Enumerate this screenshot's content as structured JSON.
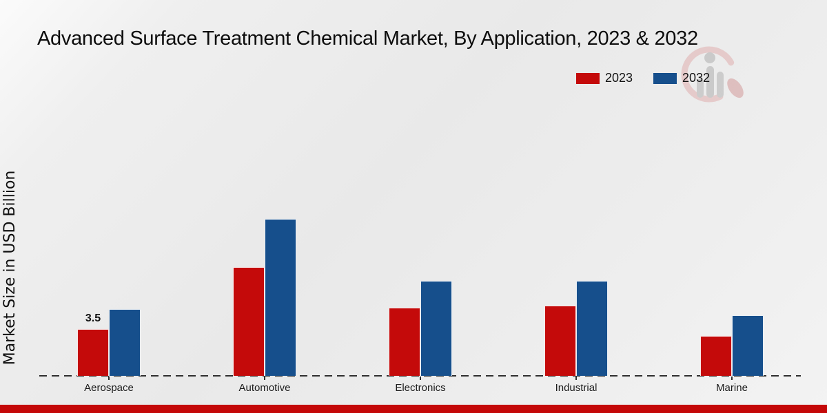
{
  "title": "Advanced Surface Treatment Chemical Market, By Application, 2023 & 2032",
  "ylabel": "Market Size in USD Billion",
  "footer_color": "#c40808",
  "watermark_icon": "mrfr-logo-watermark",
  "chart_data": {
    "type": "bar",
    "title": "Advanced Surface Treatment Chemical Market, By Application, 2023 & 2032",
    "categories": [
      "Aerospace",
      "Automotive",
      "Electronics",
      "Industrial",
      "Marine"
    ],
    "series": [
      {
        "name": "2023",
        "color": "#c40a0a",
        "values": [
          3.5,
          8.1,
          5.1,
          5.25,
          3.0
        ]
      },
      {
        "name": "2032",
        "color": "#164f8c",
        "values": [
          5.0,
          11.7,
          7.1,
          7.1,
          4.5
        ]
      }
    ],
    "bar_labels": [
      [
        "3.5",
        "",
        "",
        "",
        ""
      ],
      [
        "",
        "",
        "",
        "",
        ""
      ]
    ],
    "xlabel": "",
    "ylabel": "Market Size in USD Billion",
    "ylim": [
      0,
      14
    ],
    "grid": false,
    "legend_position": "top-right",
    "baseline_style": "dashed"
  }
}
